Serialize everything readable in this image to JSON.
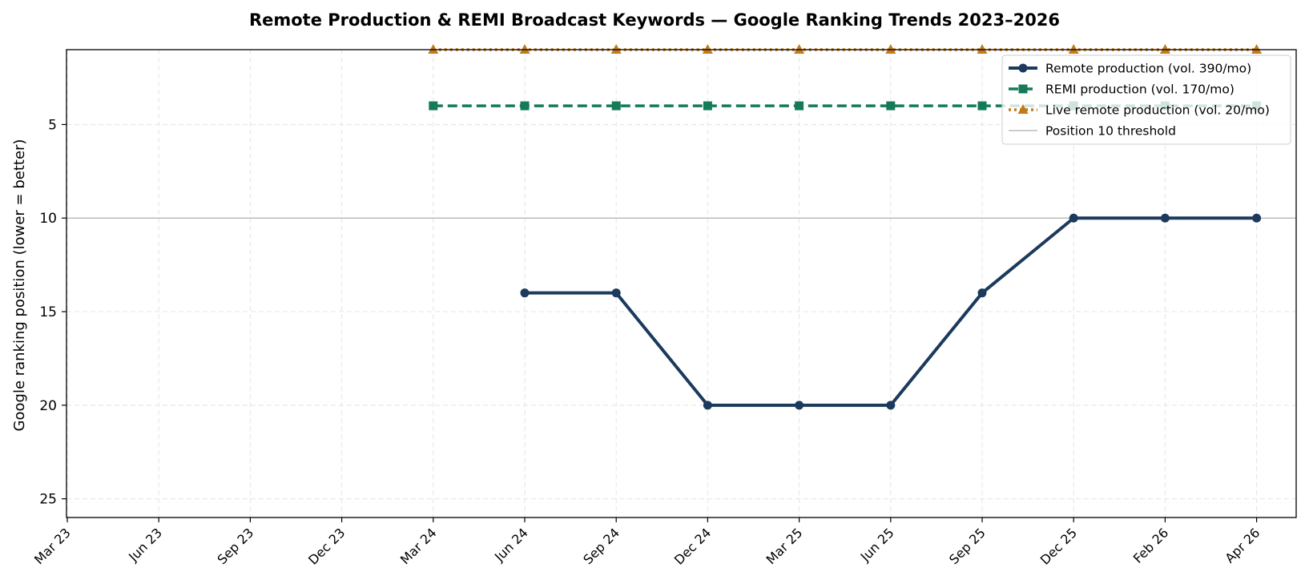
{
  "chart_data": {
    "type": "line",
    "title": "Remote Production & REMI Broadcast Keywords — Google Ranking Trends 2023–2026",
    "xlabel": "",
    "ylabel": "Google ranking position (lower = better)",
    "categories": [
      "Mar 23",
      "Jun 23",
      "Sep 23",
      "Dec 23",
      "Mar 24",
      "Jun 24",
      "Sep 24",
      "Dec 24",
      "Mar 25",
      "Jun 25",
      "Sep 25",
      "Dec 25",
      "Feb 26",
      "Apr 26"
    ],
    "y_ticks": [
      5,
      10,
      15,
      20,
      25
    ],
    "ylim": [
      26,
      1
    ],
    "y_inverted": true,
    "grid": true,
    "legend_position": "top-right",
    "series": [
      {
        "name": "Remote production (vol. 390/mo)",
        "color": "#1b3a5c",
        "line_style": "solid",
        "marker": "circle",
        "values": [
          null,
          null,
          null,
          null,
          null,
          14,
          14,
          20,
          20,
          20,
          14,
          10,
          10,
          10
        ]
      },
      {
        "name": "REMI production (vol. 170/mo)",
        "color": "#157a5a",
        "line_style": "dashed",
        "marker": "square",
        "values": [
          null,
          null,
          null,
          null,
          4,
          4,
          4,
          4,
          4,
          4,
          4,
          4,
          4,
          4
        ]
      },
      {
        "name": "Live remote production (vol. 20/mo)",
        "color": "#c27a1a",
        "line_style": "dotted",
        "marker": "triangle",
        "values": [
          null,
          null,
          null,
          null,
          1,
          1,
          1,
          1,
          1,
          1,
          1,
          1,
          1,
          1
        ]
      }
    ],
    "reference_lines": [
      {
        "name": "Position 10 threshold",
        "y": 10,
        "color": "#bbbbbb"
      }
    ]
  }
}
